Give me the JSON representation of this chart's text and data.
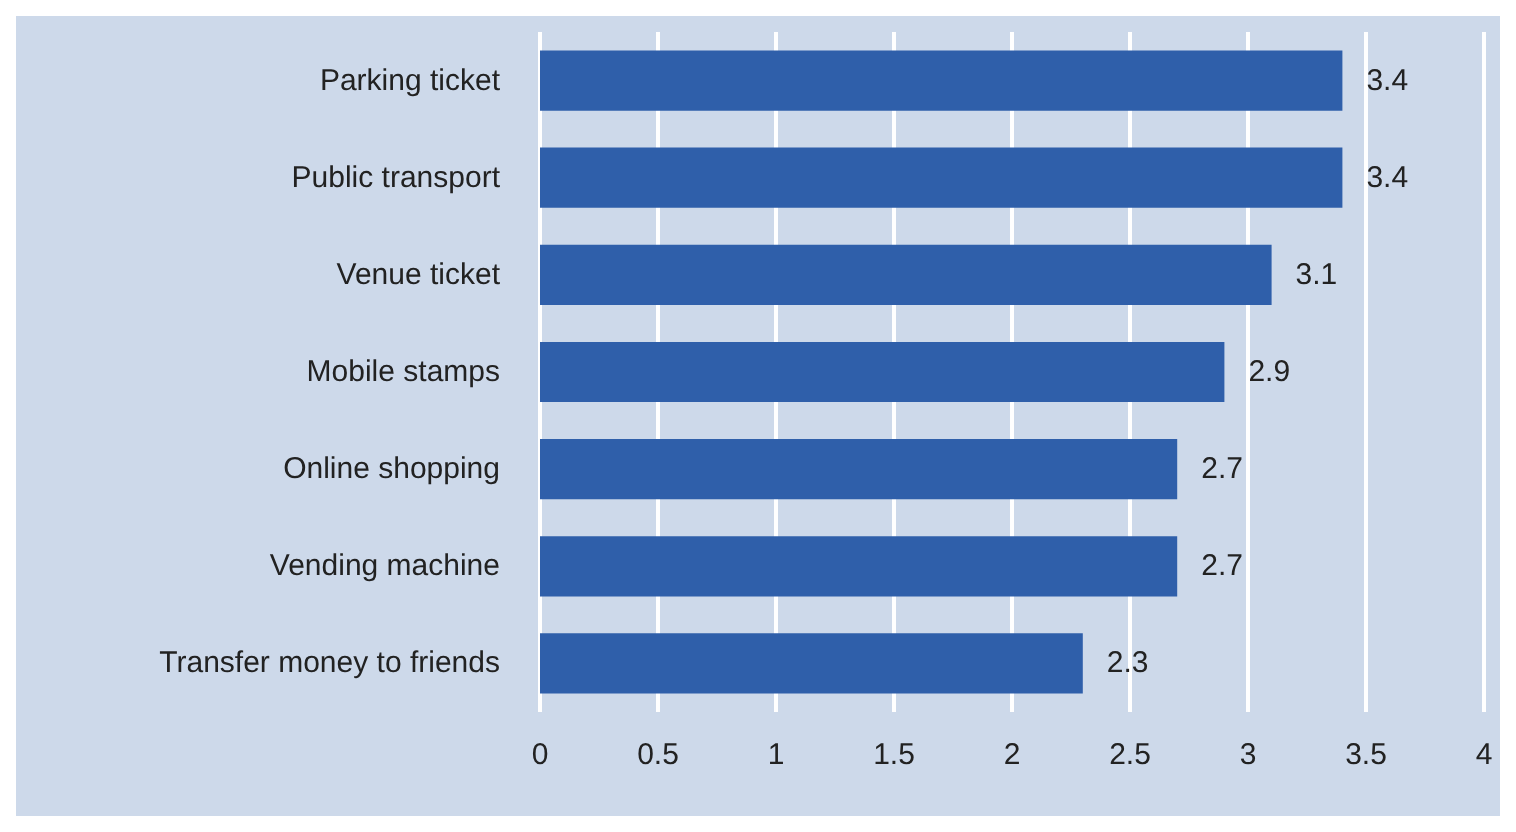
{
  "chart_data": {
    "type": "bar",
    "orientation": "horizontal",
    "categories": [
      "Parking ticket",
      "Public transport",
      "Venue ticket",
      "Mobile stamps",
      "Online shopping",
      "Vending machine",
      "Transfer money to friends"
    ],
    "values": [
      3.4,
      3.4,
      3.1,
      2.9,
      2.7,
      2.7,
      2.3
    ],
    "color": "#2f5faa",
    "xlim": [
      0,
      4
    ],
    "xticks": [
      0,
      0.5,
      1,
      1.5,
      2,
      2.5,
      3,
      3.5,
      4
    ],
    "grid": "x",
    "data_labels": true
  }
}
